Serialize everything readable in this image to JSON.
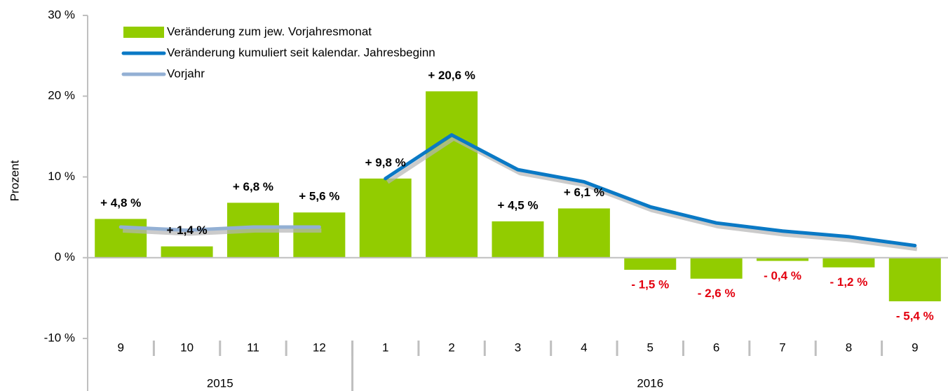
{
  "chart_data": {
    "type": "bar",
    "y_label": "Prozent",
    "categories": [
      "9",
      "10",
      "11",
      "12",
      "1",
      "2",
      "3",
      "4",
      "5",
      "6",
      "7",
      "8",
      "9"
    ],
    "groups": [
      {
        "label": "2015",
        "span": 4
      },
      {
        "label": "2016",
        "span": 9
      }
    ],
    "series": [
      {
        "name": "Veränderung zum jew. Vorjahresmonat",
        "type": "bar",
        "color": "#92cc00",
        "values": [
          4.8,
          1.4,
          6.8,
          5.6,
          9.8,
          20.6,
          4.5,
          6.1,
          -1.5,
          -2.6,
          -0.4,
          -1.2,
          -5.4
        ],
        "value_labels": [
          "+ 4,8 %",
          "+ 1,4 %",
          "+ 6,8 %",
          "+ 5,6 %",
          "+ 9,8 %",
          "+ 20,6 %",
          "+ 4,5 %",
          "+ 6,1 %",
          "- 1,5 %",
          "- 2,6 %",
          "- 0,4 %",
          "- 1,2 %",
          "- 5,4 %"
        ]
      },
      {
        "name": "Veränderung kumuliert seit kalendar. Jahresbeginn",
        "type": "line",
        "color": "#0a79c5",
        "values": [
          null,
          null,
          null,
          null,
          9.8,
          15.2,
          10.9,
          9.4,
          6.3,
          4.3,
          3.3,
          2.6,
          1.5
        ]
      },
      {
        "name": "Vorjahr",
        "type": "line",
        "color": "#93b0d4",
        "values": [
          3.8,
          3.4,
          3.8,
          3.8,
          null,
          null,
          null,
          null,
          null,
          null,
          null,
          null,
          null
        ]
      }
    ],
    "ylim": [
      -10,
      30
    ],
    "yticks": [
      {
        "value": -10,
        "label": "-10 %"
      },
      {
        "value": 0,
        "label": "0 %"
      },
      {
        "value": 10,
        "label": "10 %"
      },
      {
        "value": 20,
        "label": "20 %"
      },
      {
        "value": 30,
        "label": "30 %"
      }
    ],
    "negative_label_color": "#e3000f",
    "positive_label_color": "#000000"
  }
}
